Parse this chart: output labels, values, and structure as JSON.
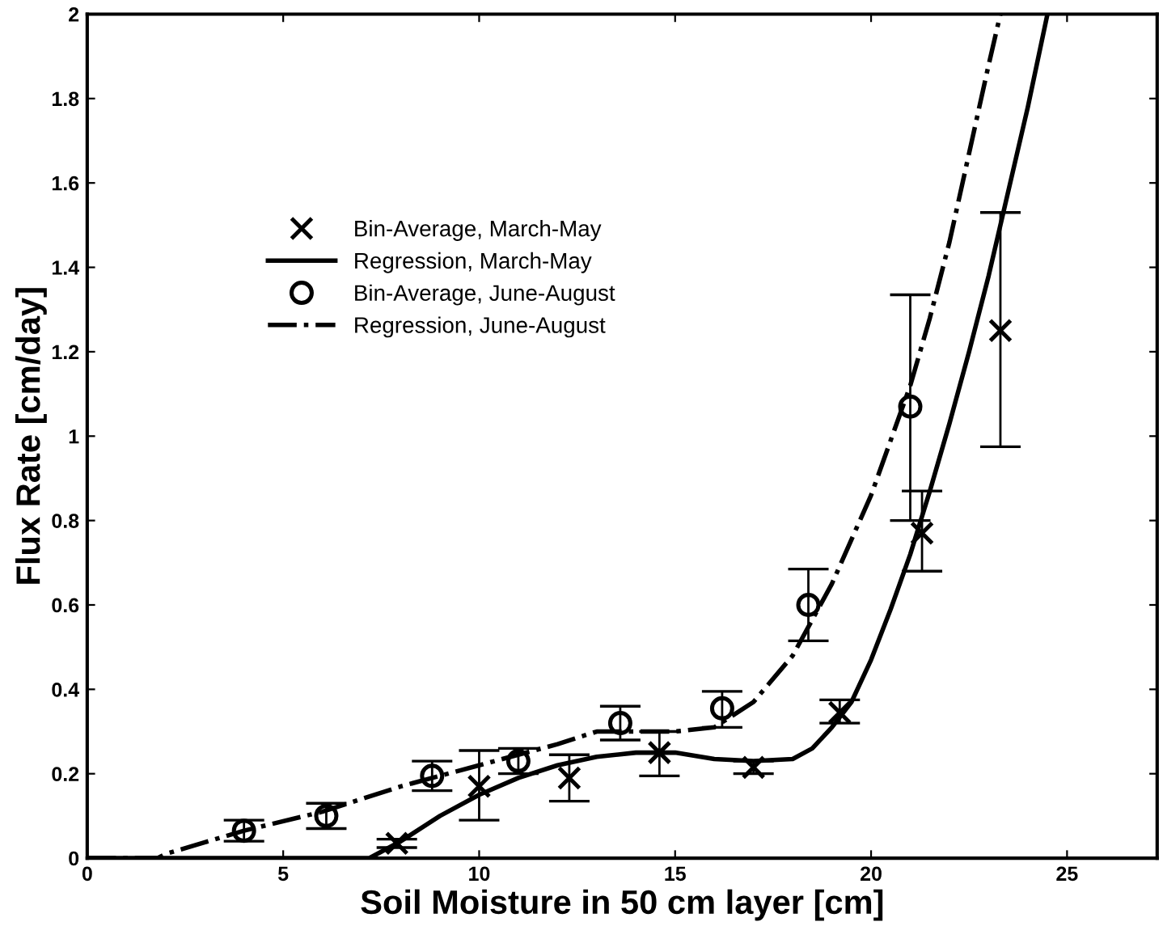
{
  "chart_data": {
    "type": "scatter",
    "xlabel": "Soil Moisture in 50 cm layer [cm]",
    "ylabel": "Flux Rate [cm/day]",
    "xlim": [
      0,
      27.3
    ],
    "ylim": [
      0,
      2
    ],
    "xticks": [
      0,
      5,
      10,
      15,
      20,
      25
    ],
    "yticks": [
      0,
      0.2,
      0.4,
      0.6,
      0.8,
      1,
      1.2,
      1.4,
      1.6,
      1.8,
      2
    ],
    "grid": false,
    "legend": "top left",
    "series": [
      {
        "name": "Bin-Average, March-May",
        "marker": "cross",
        "color": "#000000",
        "x": [
          7.9,
          10.0,
          12.3,
          14.6,
          17.0,
          19.2,
          21.3,
          23.3
        ],
        "values": [
          0.035,
          0.17,
          0.19,
          0.25,
          0.215,
          0.345,
          0.77,
          1.25
        ],
        "errors": [
          [
            0.025,
            0.045
          ],
          [
            0.09,
            0.255
          ],
          [
            0.135,
            0.245
          ],
          [
            0.195,
            0.3
          ],
          [
            0.2,
            0.23
          ],
          [
            0.32,
            0.375
          ],
          [
            0.68,
            0.87
          ],
          [
            0.975,
            1.53
          ]
        ]
      },
      {
        "name": "Regression, March-May",
        "type": "line",
        "marker": "none",
        "line_style": "solid",
        "color": "#000000",
        "x": [
          0,
          7.2,
          8,
          9,
          10,
          11,
          12,
          13,
          14,
          15,
          16,
          17,
          18,
          18.5,
          19,
          19.5,
          20,
          20.5,
          21,
          21.5,
          22,
          22.5,
          23,
          23.5,
          24,
          24.5
        ],
        "values": [
          0,
          0,
          0.04,
          0.1,
          0.15,
          0.19,
          0.22,
          0.24,
          0.25,
          0.25,
          0.235,
          0.23,
          0.235,
          0.26,
          0.31,
          0.37,
          0.47,
          0.59,
          0.72,
          0.87,
          1.03,
          1.2,
          1.38,
          1.58,
          1.78,
          2.0
        ]
      },
      {
        "name": "Bin-Average, June-August",
        "marker": "circle",
        "color": "#000000",
        "x": [
          4.0,
          6.1,
          8.8,
          11.0,
          13.6,
          16.2,
          18.4,
          21.0
        ],
        "values": [
          0.065,
          0.1,
          0.195,
          0.23,
          0.32,
          0.355,
          0.6,
          1.07
        ],
        "errors": [
          [
            0.04,
            0.09
          ],
          [
            0.07,
            0.13
          ],
          [
            0.16,
            0.23
          ],
          [
            0.2,
            0.26
          ],
          [
            0.28,
            0.36
          ],
          [
            0.31,
            0.395
          ],
          [
            0.515,
            0.685
          ],
          [
            0.8,
            1.335
          ]
        ]
      },
      {
        "name": "Regression, June-August",
        "type": "line",
        "marker": "none",
        "line_style": "dashdot",
        "color": "#000000",
        "x": [
          0,
          1.8,
          2,
          4,
          6,
          8,
          10,
          12,
          13,
          14,
          15,
          16,
          17,
          18,
          19,
          20,
          21,
          21.5,
          22,
          22.5,
          23,
          23.3
        ],
        "values": [
          0,
          0,
          0.01,
          0.065,
          0.11,
          0.17,
          0.22,
          0.27,
          0.3,
          0.3,
          0.3,
          0.31,
          0.37,
          0.48,
          0.65,
          0.86,
          1.12,
          1.28,
          1.46,
          1.67,
          1.88,
          2.0
        ]
      }
    ]
  }
}
